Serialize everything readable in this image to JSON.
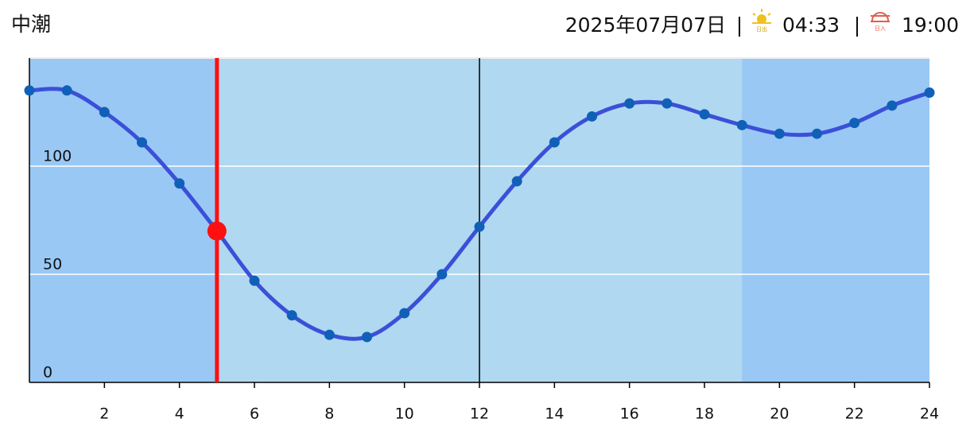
{
  "header": {
    "tide_name": "中潮",
    "date": "2025年07月07日",
    "separator": "|",
    "sunrise_icon_label": "日出",
    "sunrise": "04:33",
    "sunset_icon_label": "日入",
    "sunset": "19:00"
  },
  "chart_data": {
    "type": "line",
    "x": [
      0,
      1,
      2,
      3,
      4,
      5,
      6,
      7,
      8,
      9,
      10,
      11,
      12,
      13,
      14,
      15,
      16,
      17,
      18,
      19,
      20,
      21,
      22,
      23,
      24
    ],
    "series": [
      {
        "color": "#3b50d8",
        "marker_color": "#1060b8",
        "values": [
          135,
          135,
          125,
          111,
          92,
          70,
          47,
          31,
          22,
          21,
          32,
          50,
          72,
          93,
          111,
          123,
          129,
          129,
          124,
          119,
          115,
          115,
          120,
          128,
          134
        ]
      }
    ],
    "xlim": [
      0,
      24
    ],
    "xticks": [
      2,
      4,
      6,
      8,
      10,
      12,
      14,
      16,
      18,
      20,
      22,
      24
    ],
    "ylim": [
      0,
      150
    ],
    "yticks": [
      0,
      50,
      100
    ],
    "grid": true,
    "day_band": {
      "start": 5,
      "end": 19,
      "color": "#b0d8f0"
    },
    "night_color": "#99c8f5",
    "current": {
      "x": 5,
      "value": 70,
      "color": "#ff1010"
    },
    "vlines": [
      12
    ]
  }
}
